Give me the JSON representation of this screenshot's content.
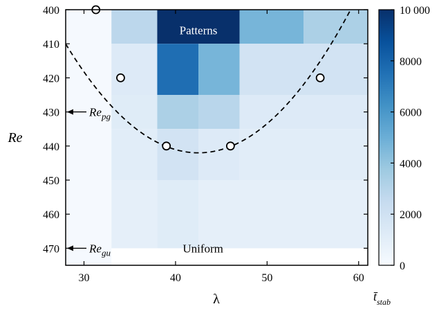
{
  "chart_data": {
    "type": "heatmap",
    "title": "",
    "xlabel": "λ",
    "ylabel": "Re",
    "xlim": [
      28,
      61
    ],
    "ylim": [
      400,
      475
    ],
    "y_inverted": true,
    "xticks": [
      30,
      40,
      50,
      60
    ],
    "yticks": [
      400,
      410,
      420,
      430,
      440,
      450,
      460,
      470
    ],
    "grid": false,
    "colorbar": {
      "label": "t̄",
      "label_subscript": "stab",
      "range": [
        0,
        10000
      ],
      "ticks": [
        {
          "value": 0,
          "label": "0"
        },
        {
          "value": 2000,
          "label": "2000"
        },
        {
          "value": 4000,
          "label": "4000"
        },
        {
          "value": 6000,
          "label": "6000"
        },
        {
          "value": 8000,
          "label": "8000"
        },
        {
          "value": 10000,
          "label": "10 000"
        }
      ],
      "colormap": "Blues"
    },
    "cells": [
      {
        "x0": 28,
        "x1": 33,
        "y0": 400,
        "y1": 475,
        "value": 120
      },
      {
        "x0": 33,
        "x1": 38,
        "y0": 400,
        "y1": 410,
        "value": 2800
      },
      {
        "x0": 38,
        "x1": 47,
        "y0": 400,
        "y1": 410,
        "value": 10000
      },
      {
        "x0": 47,
        "x1": 54,
        "y0": 400,
        "y1": 410,
        "value": 4700
      },
      {
        "x0": 54,
        "x1": 61,
        "y0": 400,
        "y1": 410,
        "value": 3300
      },
      {
        "x0": 33,
        "x1": 38,
        "y0": 410,
        "y1": 425,
        "value": 1300
      },
      {
        "x0": 38,
        "x1": 42.5,
        "y0": 410,
        "y1": 425,
        "value": 7600
      },
      {
        "x0": 42.5,
        "x1": 47,
        "y0": 410,
        "y1": 425,
        "value": 4700
      },
      {
        "x0": 47,
        "x1": 61,
        "y0": 410,
        "y1": 425,
        "value": 1900
      },
      {
        "x0": 33,
        "x1": 38,
        "y0": 425,
        "y1": 435,
        "value": 1200
      },
      {
        "x0": 38,
        "x1": 42.5,
        "y0": 425,
        "y1": 435,
        "value": 3300
      },
      {
        "x0": 42.5,
        "x1": 47,
        "y0": 425,
        "y1": 435,
        "value": 2900
      },
      {
        "x0": 47,
        "x1": 61,
        "y0": 425,
        "y1": 435,
        "value": 1300
      },
      {
        "x0": 33,
        "x1": 38,
        "y0": 435,
        "y1": 450,
        "value": 1100
      },
      {
        "x0": 38,
        "x1": 42.5,
        "y0": 435,
        "y1": 450,
        "value": 1900
      },
      {
        "x0": 42.5,
        "x1": 47,
        "y0": 435,
        "y1": 450,
        "value": 1300
      },
      {
        "x0": 47,
        "x1": 61,
        "y0": 435,
        "y1": 450,
        "value": 1100
      },
      {
        "x0": 33,
        "x1": 38,
        "y0": 450,
        "y1": 470,
        "value": 900
      },
      {
        "x0": 38,
        "x1": 42.5,
        "y0": 450,
        "y1": 470,
        "value": 1200
      },
      {
        "x0": 42.5,
        "x1": 61,
        "y0": 450,
        "y1": 470,
        "value": 900
      }
    ],
    "boundary_points": [
      {
        "x": 31.3,
        "y": 400
      },
      {
        "x": 34.0,
        "y": 420
      },
      {
        "x": 39.0,
        "y": 440
      },
      {
        "x": 46.0,
        "y": 440
      },
      {
        "x": 55.8,
        "y": 420
      }
    ],
    "boundary_curve": {
      "style": "dashed",
      "vertex_x": 42.5,
      "vertex_y": 442,
      "curvature": 0.152
    },
    "annotations": [
      {
        "text": "Patterns",
        "x": 42.5,
        "y": 406,
        "color": "#ffffff"
      },
      {
        "text": "Uniform",
        "x": 43.0,
        "y": 470,
        "color": "#000000"
      }
    ],
    "markers": [
      {
        "label": "Re",
        "subscript": "pg",
        "y": 430
      },
      {
        "label": "Re",
        "subscript": "gu",
        "y": 470
      }
    ]
  }
}
